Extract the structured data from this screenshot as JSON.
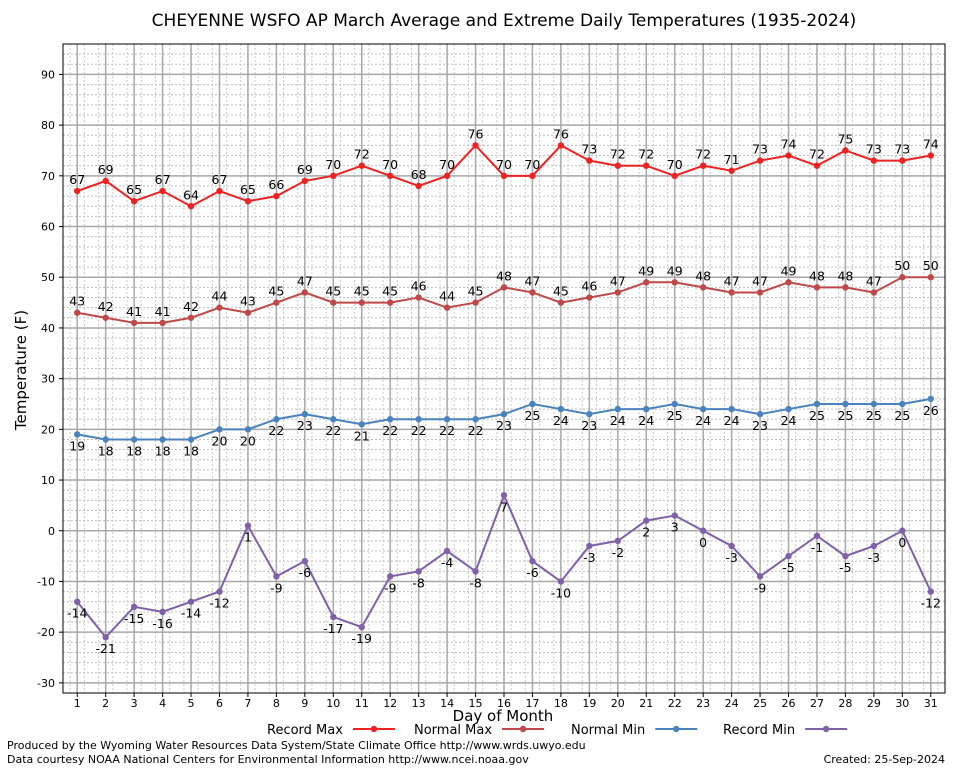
{
  "chart_data": {
    "type": "line",
    "title": "CHEYENNE WSFO AP March Average and Extreme Daily Temperatures (1935-2024)",
    "xlabel": "Day of Month",
    "ylabel": "Temperature (F)",
    "ylim": [
      -32,
      96
    ],
    "yticks": [
      -30,
      -20,
      -10,
      0,
      10,
      20,
      30,
      40,
      50,
      60,
      70,
      80,
      90
    ],
    "x": [
      1,
      2,
      3,
      4,
      5,
      6,
      7,
      8,
      9,
      10,
      11,
      12,
      13,
      14,
      15,
      16,
      17,
      18,
      19,
      20,
      21,
      22,
      23,
      24,
      25,
      26,
      27,
      28,
      29,
      30,
      31
    ],
    "grid": true,
    "legend_position": "bottom",
    "series": [
      {
        "name": "Record Max",
        "color": "#ee2222",
        "label_pos": "above",
        "values": [
          67,
          69,
          65,
          67,
          64,
          67,
          65,
          66,
          69,
          70,
          72,
          70,
          68,
          70,
          76,
          70,
          70,
          76,
          73,
          72,
          72,
          70,
          72,
          71,
          73,
          74,
          72,
          75,
          73,
          73,
          74
        ]
      },
      {
        "name": "Normal Max",
        "color": "#c04848",
        "label_pos": "above",
        "values": [
          43,
          42,
          41,
          41,
          42,
          44,
          43,
          45,
          47,
          45,
          45,
          45,
          46,
          44,
          45,
          48,
          47,
          45,
          46,
          47,
          49,
          49,
          48,
          47,
          47,
          49,
          48,
          48,
          47,
          50,
          50
        ]
      },
      {
        "name": "Normal Min",
        "color": "#4a82bd",
        "label_pos": "below",
        "values": [
          19,
          18,
          18,
          18,
          18,
          20,
          20,
          22,
          23,
          22,
          21,
          22,
          22,
          22,
          22,
          23,
          25,
          24,
          23,
          24,
          24,
          25,
          24,
          24,
          23,
          24,
          25,
          25,
          25,
          25,
          26
        ]
      },
      {
        "name": "Record Min",
        "color": "#8060a8",
        "label_pos": "below",
        "values": [
          -14,
          -21,
          -15,
          -16,
          -14,
          -12,
          1,
          -9,
          -6,
          -17,
          -19,
          -9,
          -8,
          -4,
          -8,
          7,
          -6,
          -10,
          -3,
          -2,
          2,
          3,
          0,
          -3,
          -9,
          -5,
          -1,
          -5,
          -3,
          0,
          -12
        ]
      }
    ]
  },
  "footer": {
    "left_line1": "Produced by the Wyoming Water Resources Data System/State Climate Office http://www.wrds.uwyo.edu",
    "left_line2": "Data courtesy NOAA National Centers for Environmental Information http://www.ncei.noaa.gov",
    "created": "Created:  25-Sep-2024"
  }
}
